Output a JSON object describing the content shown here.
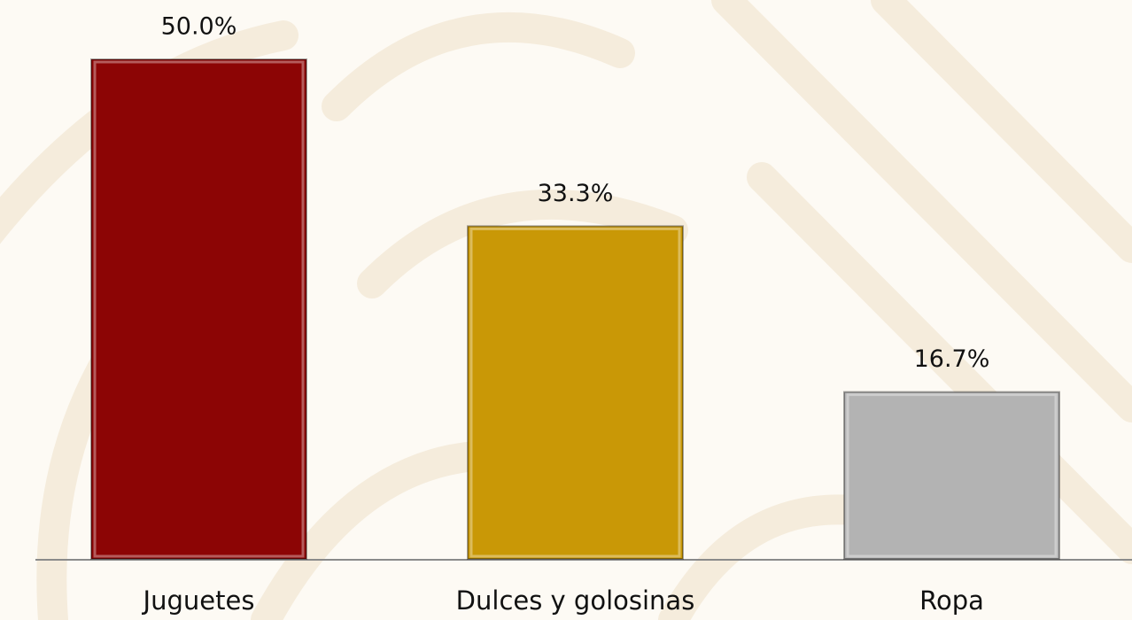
{
  "chart_data": {
    "type": "bar",
    "categories": [
      "Juguetes",
      "Dulces y golosinas",
      "Ropa"
    ],
    "values": [
      50.0,
      33.3,
      16.7
    ],
    "value_labels": [
      "50.0%",
      "33.3%",
      "16.7%"
    ],
    "colors": [
      "#8c0505",
      "#c99806",
      "#b3b3b3"
    ]
  }
}
